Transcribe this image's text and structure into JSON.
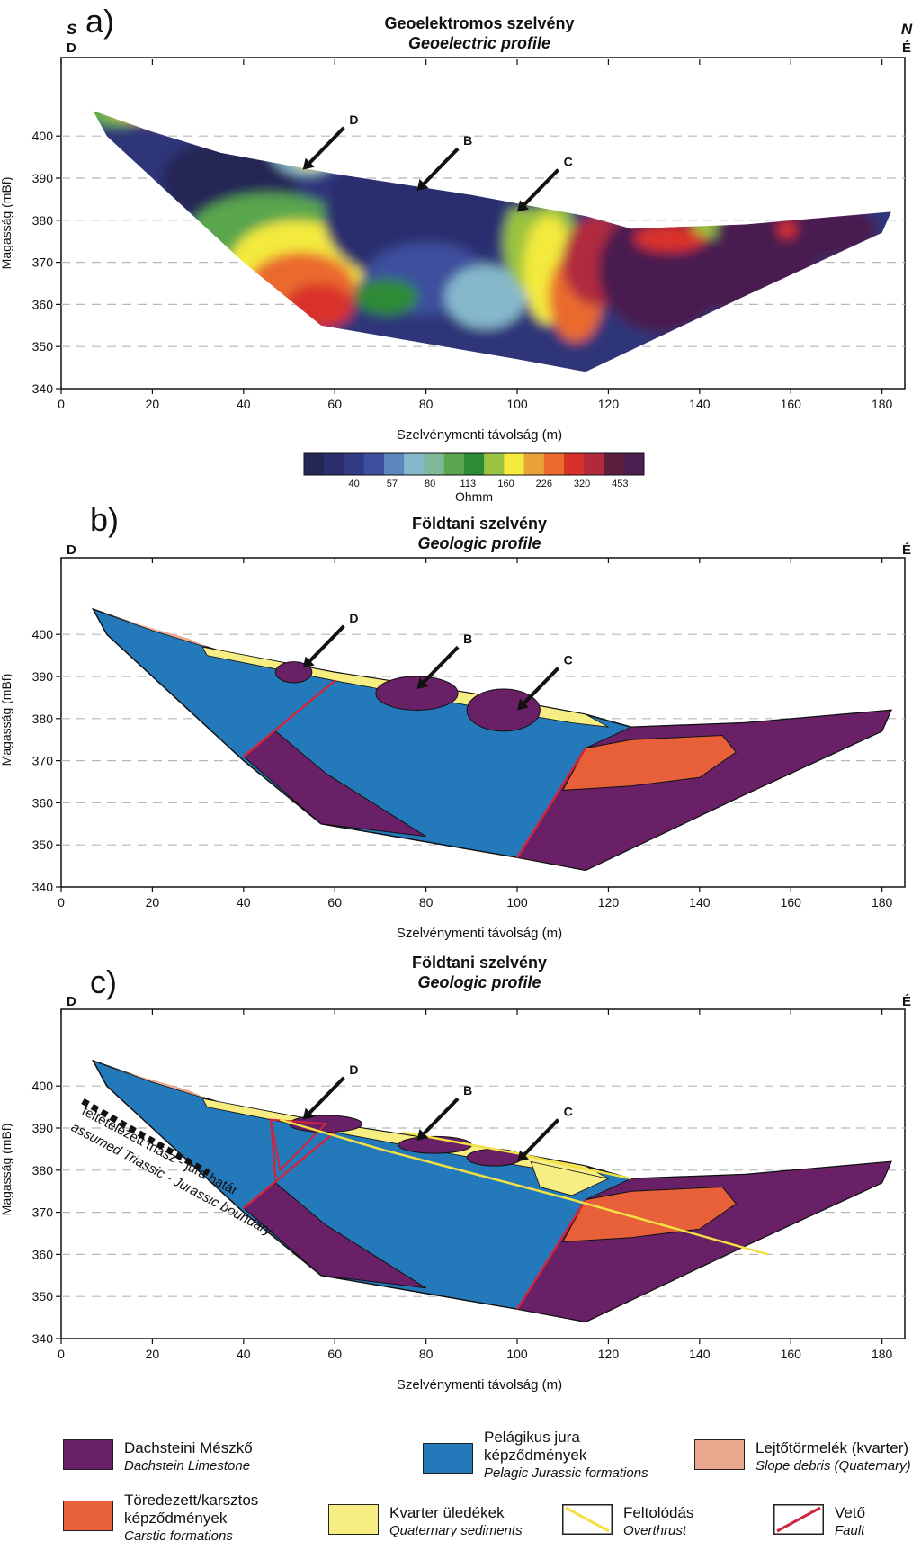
{
  "panels": [
    {
      "letter": "a)",
      "title_hu": "Geoelektromos szelvény",
      "title_en": "Geoelectric profile",
      "left_dir_top": "S",
      "left_dir": "D",
      "right_dir_top": "N",
      "right_dir": "É"
    },
    {
      "letter": "b)",
      "title_hu": "Földtani szelvény",
      "title_en": "Geologic profile",
      "left_dir": "D",
      "right_dir": "É"
    },
    {
      "letter": "c)",
      "title_hu": "Földtani szelvény",
      "title_en": "Geologic profile",
      "left_dir": "D",
      "right_dir": "É"
    }
  ],
  "axes": {
    "ylabel": "Magasság (mBf)",
    "xlabel": "Szelvénymenti távolság (m)",
    "x_ticks": [
      "0",
      "20",
      "40",
      "60",
      "80",
      "100",
      "120",
      "140",
      "160",
      "180"
    ],
    "y_ticks": [
      "340",
      "350",
      "360",
      "370",
      "380",
      "390",
      "400"
    ],
    "x_range": [
      0,
      185
    ],
    "y_range": [
      340,
      410
    ]
  },
  "markers": [
    "D",
    "B",
    "C"
  ],
  "colorbar": {
    "labels": [
      "40",
      "57",
      "80",
      "113",
      "160",
      "226",
      "320",
      "453"
    ],
    "unit": "Ohmm",
    "colors": [
      "#262655",
      "#2c2f6e",
      "#323a86",
      "#3d4f9e",
      "#5b87be",
      "#86b8cc",
      "#7fb899",
      "#5aa64e",
      "#2f8a36",
      "#9ac340",
      "#f3ea3c",
      "#e9a23a",
      "#ea6a2d",
      "#d9302c",
      "#b12a3c",
      "#5c1f3c",
      "#4a1e4f"
    ]
  },
  "boundary_label": {
    "hu": "feltételezett triász - jura határ",
    "en": "assumed Triassic - Jurassic boundary"
  },
  "colors": {
    "dachstein": "#6a2067",
    "jurassic": "#2479ba",
    "debris": "#e8a98f",
    "carstic": "#e8603a",
    "quaternary": "#f7ee83",
    "overthrust": "#f3e043",
    "fault": "#d0263c"
  },
  "legend": [
    {
      "hu": "Dachsteini Mészkő",
      "en": "Dachstein Limestone",
      "color": "dachstein"
    },
    {
      "hu": "Pelágikus jura képződmények",
      "en": "Pelagic Jurassic formations",
      "color": "jurassic"
    },
    {
      "hu": "Lejtőtörmelék (kvarter)",
      "en": "Slope debris (Quaternary)",
      "color": "debris"
    },
    {
      "hu": "Töredezett/karsztos képződmények",
      "en": "Carstic formations",
      "color": "carstic"
    },
    {
      "hu": "Kvarter üledékek",
      "en": "Quaternary sediments",
      "color": "quaternary"
    },
    {
      "hu": "Feltolódás",
      "en": "Overthrust",
      "color": "overthrust"
    },
    {
      "hu": "Vető",
      "en": "Fault",
      "color": "fault"
    }
  ]
}
